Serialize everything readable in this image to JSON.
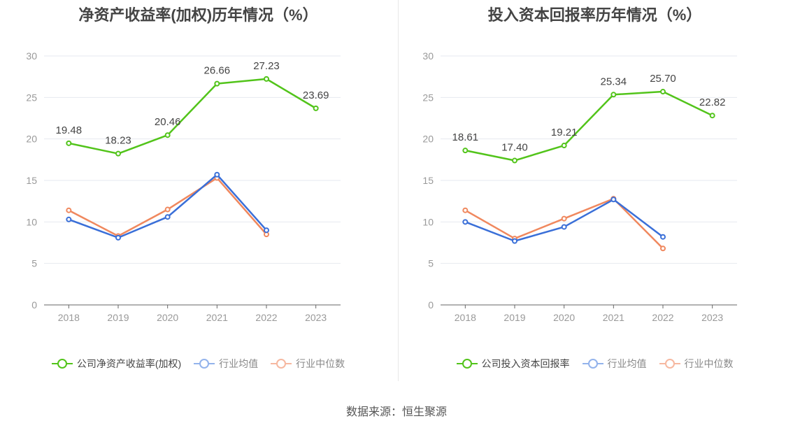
{
  "colors": {
    "company": "#52c41a",
    "avg": "#3a6fd8",
    "median": "#f0885e",
    "grid": "#e6e9ef",
    "axis": "#666666"
  },
  "source": "数据来源：恒生聚源",
  "chart_data": [
    {
      "type": "line",
      "title": "净资产收益率(加权)历年情况（%）",
      "categories": [
        "2018",
        "2019",
        "2020",
        "2021",
        "2022",
        "2023"
      ],
      "ylim": [
        0,
        30
      ],
      "yticks": [
        0,
        5,
        10,
        15,
        20,
        25,
        30
      ],
      "grid": true,
      "legend_placement": "bottom",
      "series": [
        {
          "name": "公司净资产收益率(加权)",
          "color": "#52c41a",
          "values": [
            19.48,
            18.23,
            20.46,
            26.66,
            27.23,
            23.69
          ],
          "labels": [
            "19.48",
            "18.23",
            "20.46",
            "26.66",
            "27.23",
            "23.69"
          ]
        },
        {
          "name": "行业均值",
          "color": "#3a6fd8",
          "values": [
            10.3,
            8.1,
            10.6,
            15.7,
            9.0,
            null
          ]
        },
        {
          "name": "行业中位数",
          "color": "#f0885e",
          "values": [
            11.4,
            8.3,
            11.5,
            15.3,
            8.5,
            null
          ]
        }
      ]
    },
    {
      "type": "line",
      "title": "投入资本回报率历年情况（%）",
      "categories": [
        "2018",
        "2019",
        "2020",
        "2021",
        "2022",
        "2023"
      ],
      "ylim": [
        0,
        30
      ],
      "yticks": [
        0,
        5,
        10,
        15,
        20,
        25,
        30
      ],
      "grid": true,
      "legend_placement": "bottom",
      "series": [
        {
          "name": "公司投入资本回报率",
          "color": "#52c41a",
          "values": [
            18.61,
            17.4,
            19.21,
            25.34,
            25.7,
            22.82
          ],
          "labels": [
            "18.61",
            "17.40",
            "19.21",
            "25.34",
            "25.70",
            "22.82"
          ]
        },
        {
          "name": "行业均值",
          "color": "#3a6fd8",
          "values": [
            10.0,
            7.7,
            9.4,
            12.7,
            8.2,
            null
          ]
        },
        {
          "name": "行业中位数",
          "color": "#f0885e",
          "values": [
            11.4,
            8.0,
            10.4,
            12.8,
            6.8,
            null
          ]
        }
      ]
    }
  ]
}
